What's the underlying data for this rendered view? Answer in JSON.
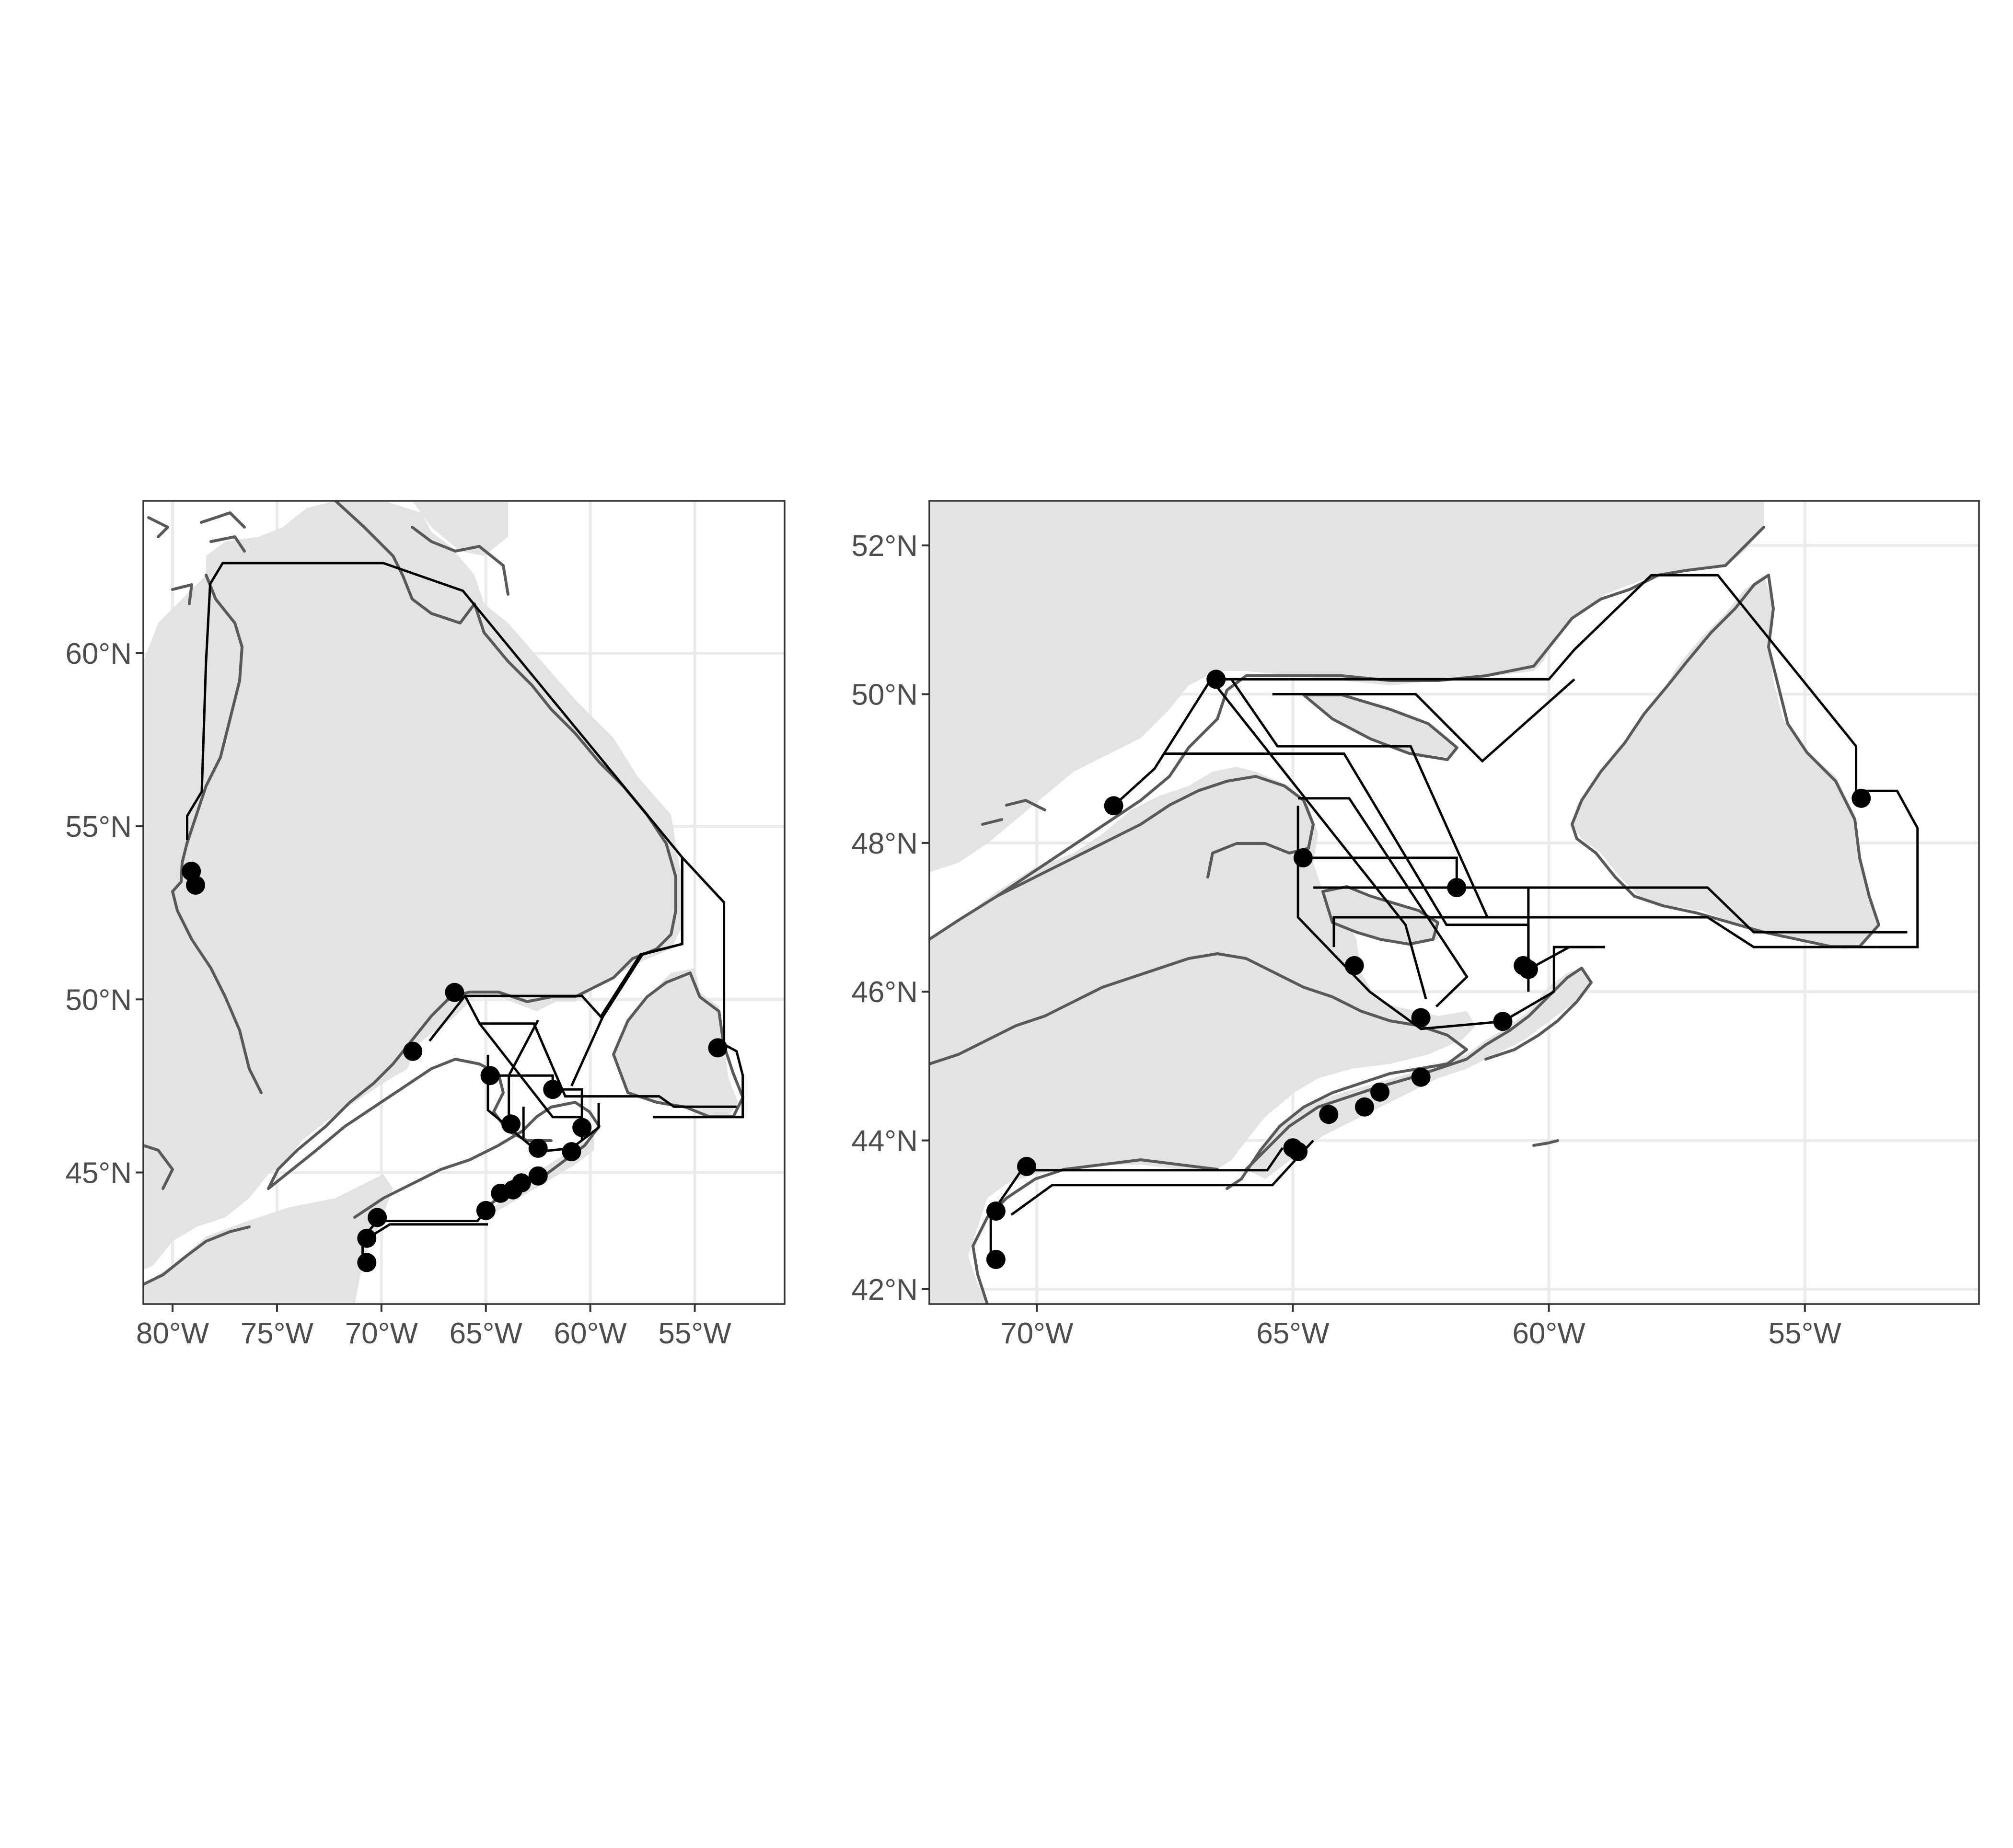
{
  "figure": {
    "panels": [
      {
        "id": "overview",
        "xlim": [
          -81.4,
          -50.7
        ],
        "ylim": [
          41.2,
          64.4
        ],
        "x_ticks": [
          -80,
          -75,
          -70,
          -65,
          -60,
          -55
        ],
        "x_tick_labels": [
          "80°W",
          "75°W",
          "70°W",
          "65°W",
          "60°W",
          "55°W"
        ],
        "y_ticks": [
          45,
          50,
          55,
          60
        ],
        "y_tick_labels": [
          "45°N",
          "50°N",
          "55°N",
          "60°N"
        ],
        "sites": [
          [
            -79.1,
            53.7
          ],
          [
            -78.9,
            53.3
          ],
          [
            -68.5,
            48.5
          ],
          [
            -66.5,
            50.2
          ],
          [
            -64.8,
            47.8
          ],
          [
            -63.8,
            46.4
          ],
          [
            -61.8,
            47.4
          ],
          [
            -62.5,
            45.7
          ],
          [
            -60.4,
            46.3
          ],
          [
            -60.9,
            45.6
          ],
          [
            -70.7,
            42.4
          ],
          [
            -70.7,
            43.1
          ],
          [
            -70.2,
            43.7
          ],
          [
            -65.0,
            43.9
          ],
          [
            -64.3,
            44.4
          ],
          [
            -63.7,
            44.5
          ],
          [
            -63.3,
            44.7
          ],
          [
            -62.5,
            44.9
          ],
          [
            -53.9,
            48.6
          ]
        ],
        "route_polygons": [
          [
            [
              -79.3,
              54.6
            ],
            [
              -79.3,
              55.3
            ],
            [
              -78.6,
              56.0
            ],
            [
              -78.4,
              59.7
            ],
            [
              -78.2,
              62.0
            ],
            [
              -77.6,
              62.6
            ],
            [
              -69.9,
              62.6
            ],
            [
              -66.1,
              61.8
            ],
            [
              -55.6,
              54.1
            ],
            [
              -55.6,
              51.6
            ],
            [
              -57.5,
              51.3
            ],
            [
              -59.4,
              49.5
            ],
            [
              -60.9,
              47.5
            ]
          ],
          [
            [
              -55.6,
              51.6
            ],
            [
              -55.6,
              54.1
            ],
            [
              -53.6,
              52.8
            ],
            [
              -53.6,
              48.7
            ],
            [
              -53.0,
              48.5
            ],
            [
              -52.7,
              47.8
            ],
            [
              -52.7,
              46.6
            ],
            [
              -53.0,
              46.6
            ],
            [
              -57.0,
              46.6
            ]
          ],
          [
            [
              -67.7,
              48.8
            ],
            [
              -66.0,
              50.1
            ],
            [
              -60.4,
              50.1
            ],
            [
              -59.5,
              49.5
            ],
            [
              -57.6,
              51.3
            ],
            [
              -55.6,
              51.6
            ]
          ],
          [
            [
              -66.0,
              50.1
            ],
            [
              -65.3,
              49.3
            ],
            [
              -62.7,
              49.3
            ],
            [
              -61.2,
              47.2
            ],
            [
              -56.7,
              47.2
            ],
            [
              -56.0,
              46.9
            ],
            [
              -53.0,
              46.9
            ]
          ],
          [
            [
              -64.9,
              48.4
            ],
            [
              -64.9,
              46.8
            ],
            [
              -63.9,
              46.3
            ],
            [
              -62.5,
              45.6
            ],
            [
              -60.9,
              45.7
            ],
            [
              -59.6,
              46.3
            ],
            [
              -59.6,
              47.0
            ]
          ],
          [
            [
              -64.9,
              47.8
            ],
            [
              -61.8,
              47.8
            ],
            [
              -61.8,
              47.4
            ],
            [
              -60.4,
              47.4
            ],
            [
              -60.4,
              45.9
            ]
          ],
          [
            [
              -65.3,
              49.3
            ],
            [
              -61.8,
              46.6
            ],
            [
              -60.4,
              46.6
            ]
          ],
          [
            [
              -70.9,
              42.6
            ],
            [
              -70.9,
              43.1
            ],
            [
              -70.2,
              43.6
            ],
            [
              -65.4,
              43.6
            ],
            [
              -65.0,
              43.9
            ]
          ],
          [
            [
              -70.4,
              43.2
            ],
            [
              -69.6,
              43.5
            ],
            [
              -64.9,
              43.5
            ]
          ],
          [
            [
              -63.9,
              46.3
            ],
            [
              -63.9,
              47.8
            ],
            [
              -62.5,
              49.4
            ]
          ],
          [
            [
              -63.2,
              46.9
            ],
            [
              -63.2,
              46.0
            ]
          ]
        ]
      },
      {
        "id": "maritimes_detail",
        "xlim": [
          -72.1,
          -51.6
        ],
        "ylim": [
          41.8,
          52.6
        ],
        "x_ticks": [
          -70,
          -65,
          -60,
          -55
        ],
        "x_tick_labels": [
          "70°W",
          "65°W",
          "60°W",
          "55°W"
        ],
        "y_ticks": [
          42,
          44,
          46,
          48,
          50,
          52
        ],
        "y_tick_labels": [
          "42°N",
          "44°N",
          "46°N",
          "48°N",
          "50°N",
          "52°N"
        ],
        "sites": [
          [
            -68.5,
            48.5
          ],
          [
            -66.5,
            50.2
          ],
          [
            -64.8,
            47.8
          ],
          [
            -61.8,
            47.4
          ],
          [
            -63.8,
            46.35
          ],
          [
            -62.5,
            45.65
          ],
          [
            -60.4,
            46.3
          ],
          [
            -60.9,
            45.6
          ],
          [
            -70.8,
            42.4
          ],
          [
            -70.8,
            43.05
          ],
          [
            -70.2,
            43.65
          ],
          [
            -64.9,
            43.85
          ],
          [
            -65.0,
            43.9
          ],
          [
            -64.3,
            44.35
          ],
          [
            -63.6,
            44.45
          ],
          [
            -63.3,
            44.65
          ],
          [
            -62.5,
            44.85
          ],
          [
            -53.9,
            48.6
          ],
          [
            -60.5,
            46.35
          ]
        ],
        "route_polygons": [
          [
            [
              -68.5,
              48.5
            ],
            [
              -67.7,
              49.0
            ],
            [
              -66.6,
              50.2
            ],
            [
              -66.2,
              50.2
            ],
            [
              -60.0,
              50.2
            ],
            [
              -59.5,
              50.6
            ],
            [
              -58.0,
              51.6
            ],
            [
              -56.7,
              51.6
            ],
            [
              -54.0,
              49.3
            ],
            [
              -54.0,
              48.7
            ],
            [
              -53.2,
              48.7
            ],
            [
              -52.8,
              48.2
            ],
            [
              -52.8,
              46.6
            ],
            [
              -53.0,
              46.6
            ],
            [
              -53.6,
              46.6
            ]
          ],
          [
            [
              -66.2,
              50.2
            ],
            [
              -65.3,
              49.3
            ],
            [
              -62.7,
              49.3
            ],
            [
              -61.2,
              47.0
            ],
            [
              -56.9,
              47.0
            ],
            [
              -56.0,
              46.6
            ],
            [
              -53.6,
              46.6
            ]
          ],
          [
            [
              -67.5,
              49.2
            ],
            [
              -64.0,
              49.2
            ],
            [
              -62.0,
              46.9
            ],
            [
              -60.4,
              46.9
            ],
            [
              -60.4,
              46.2
            ]
          ],
          [
            [
              -65.4,
              50.0
            ],
            [
              -62.6,
              50.0
            ],
            [
              -61.3,
              49.1
            ],
            [
              -59.5,
              50.2
            ]
          ],
          [
            [
              -64.9,
              48.5
            ],
            [
              -64.9,
              47.0
            ],
            [
              -64.2,
              46.5
            ],
            [
              -63.5,
              46.0
            ],
            [
              -62.5,
              45.5
            ],
            [
              -60.9,
              45.6
            ],
            [
              -59.9,
              46.0
            ],
            [
              -59.9,
              46.6
            ],
            [
              -59.1,
              46.6
            ]
          ],
          [
            [
              -64.9,
              47.8
            ],
            [
              -61.8,
              47.8
            ],
            [
              -61.8,
              47.4
            ],
            [
              -60.4,
              47.4
            ],
            [
              -60.4,
              46.0
            ]
          ],
          [
            [
              -64.6,
              47.4
            ],
            [
              -56.9,
              47.4
            ],
            [
              -56.0,
              46.8
            ],
            [
              -53.0,
              46.8
            ]
          ],
          [
            [
              -64.2,
              46.6
            ],
            [
              -64.2,
              47.0
            ],
            [
              -61.2,
              47.0
            ]
          ],
          [
            [
              -64.9,
              48.6
            ],
            [
              -63.9,
              48.6
            ],
            [
              -61.6,
              46.2
            ],
            [
              -62.2,
              45.8
            ]
          ],
          [
            [
              -70.9,
              42.4
            ],
            [
              -70.9,
              43.0
            ],
            [
              -70.3,
              43.6
            ],
            [
              -65.5,
              43.6
            ],
            [
              -65.2,
              43.9
            ]
          ],
          [
            [
              -70.5,
              43.0
            ],
            [
              -69.7,
              43.4
            ],
            [
              -65.4,
              43.4
            ],
            [
              -64.6,
              44.0
            ]
          ],
          [
            [
              -66.6,
              50.2
            ],
            [
              -62.8,
              46.9
            ],
            [
              -62.4,
              45.9
            ]
          ],
          [
            [
              -60.4,
              46.3
            ],
            [
              -59.6,
              46.6
            ],
            [
              -58.9,
              46.6
            ]
          ]
        ]
      }
    ]
  }
}
